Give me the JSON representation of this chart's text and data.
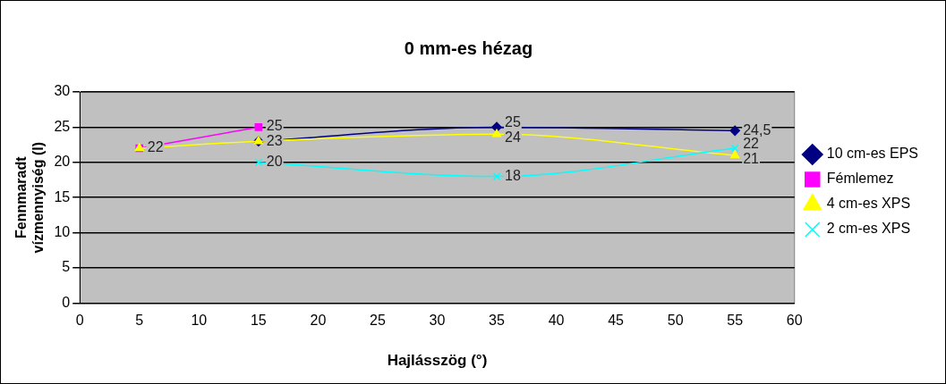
{
  "chart_data": {
    "type": "line",
    "title": "0 mm-es hézag",
    "xlabel": "Hajlásszög (°)",
    "ylabel": "Fennmaradt\nvízmennyiség (l)",
    "x": [
      5,
      15,
      35,
      55
    ],
    "series": [
      {
        "name": "10 cm-es EPS",
        "color": "#000080",
        "marker": "diamond",
        "values": [
          null,
          23,
          25,
          24.5
        ],
        "value_labels": [
          null,
          "23",
          "25",
          "24,5"
        ]
      },
      {
        "name": "Fémlemez",
        "color": "#ff00ff",
        "marker": "square",
        "values": [
          22,
          25,
          null,
          null
        ],
        "value_labels": [
          null,
          "25",
          null,
          null
        ]
      },
      {
        "name": "4 cm-es XPS",
        "color": "#ffff00",
        "marker": "triangle",
        "values": [
          22,
          23,
          24,
          21
        ],
        "value_labels": [
          "22",
          null,
          "24",
          "21"
        ]
      },
      {
        "name": "2 cm-es XPS",
        "color": "#00ffff",
        "marker": "cross",
        "values": [
          null,
          20,
          18,
          22
        ],
        "value_labels": [
          null,
          "20",
          "18",
          "22"
        ]
      }
    ],
    "xlim": [
      0,
      60
    ],
    "xticks": [
      0,
      5,
      10,
      15,
      20,
      25,
      30,
      35,
      40,
      45,
      50,
      55,
      60
    ],
    "ylim": [
      0,
      30
    ],
    "yticks": [
      0,
      5,
      10,
      15,
      20,
      25,
      30
    ],
    "grid": "y",
    "legend": "right"
  }
}
